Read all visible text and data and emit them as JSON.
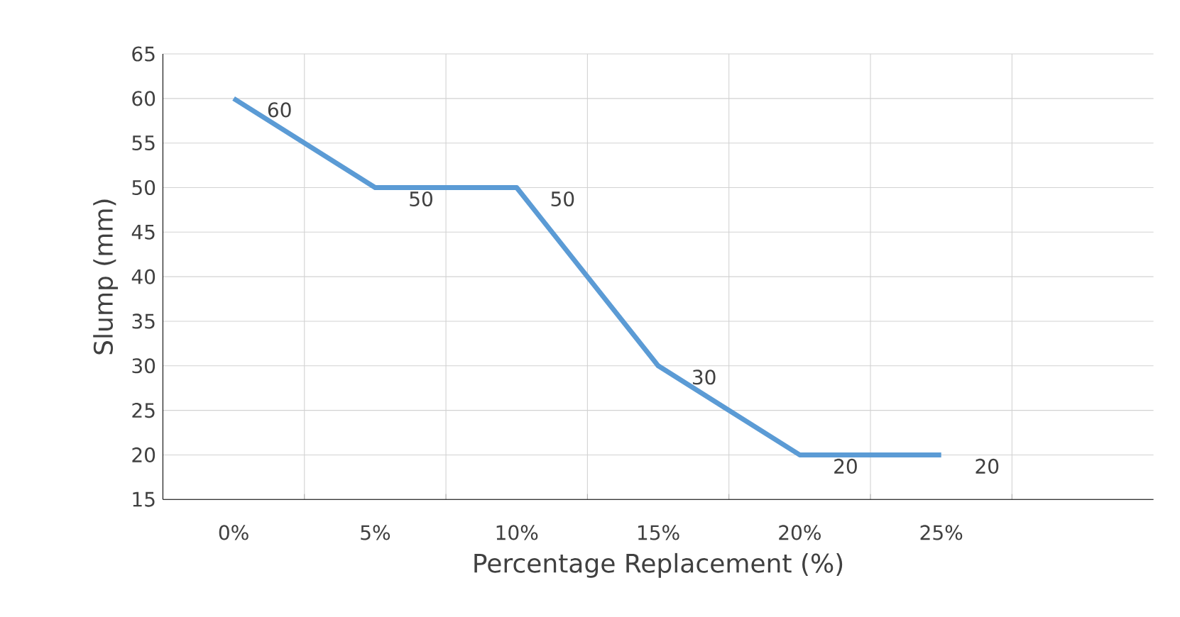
{
  "chart_data": {
    "type": "line",
    "xlabel": "Percentage Replacement (%)",
    "ylabel": "Slump (mm)",
    "categories": [
      "0%",
      "5%",
      "10%",
      "15%",
      "20%",
      "25%",
      null
    ],
    "values": [
      60,
      50,
      50,
      30,
      20,
      20,
      null
    ],
    "color": "#5b9bd5",
    "ylim": [
      15,
      65
    ],
    "yticks": [
      15,
      20,
      25,
      30,
      35,
      40,
      45,
      50,
      55,
      60,
      65
    ],
    "grid": true,
    "data_labels": true,
    "marker": "none",
    "line_style": "solid"
  }
}
